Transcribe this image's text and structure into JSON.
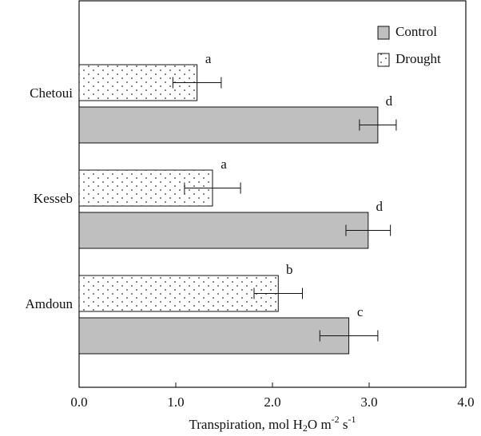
{
  "chart_data": {
    "type": "hbar",
    "categories": [
      "Chetoui",
      "Kesseb",
      "Amdoun"
    ],
    "series": [
      {
        "name": "Drought",
        "color": "#ffffff",
        "pattern": "dots",
        "values": [
          1.22,
          1.38,
          2.06
        ],
        "errors": [
          0.25,
          0.29,
          0.25
        ],
        "letters": [
          "a",
          "a",
          "b"
        ]
      },
      {
        "name": "Control",
        "color": "#bfbfbf",
        "values": [
          3.09,
          2.99,
          2.79
        ],
        "errors": [
          0.19,
          0.23,
          0.3
        ],
        "letters": [
          "d",
          "d",
          "c"
        ]
      }
    ],
    "xlabel": [
      "Transpiration, mol H",
      "2",
      "O m",
      "-2",
      " s",
      "-1"
    ],
    "xlim": [
      0,
      4
    ],
    "xticks": [
      {
        "value": 0,
        "label": "0.0"
      },
      {
        "value": 1,
        "label": "1.0"
      },
      {
        "value": 2,
        "label": "2.0"
      },
      {
        "value": 3,
        "label": "3.0"
      },
      {
        "value": 4,
        "label": "4.0"
      }
    ],
    "legend": "top-right"
  }
}
